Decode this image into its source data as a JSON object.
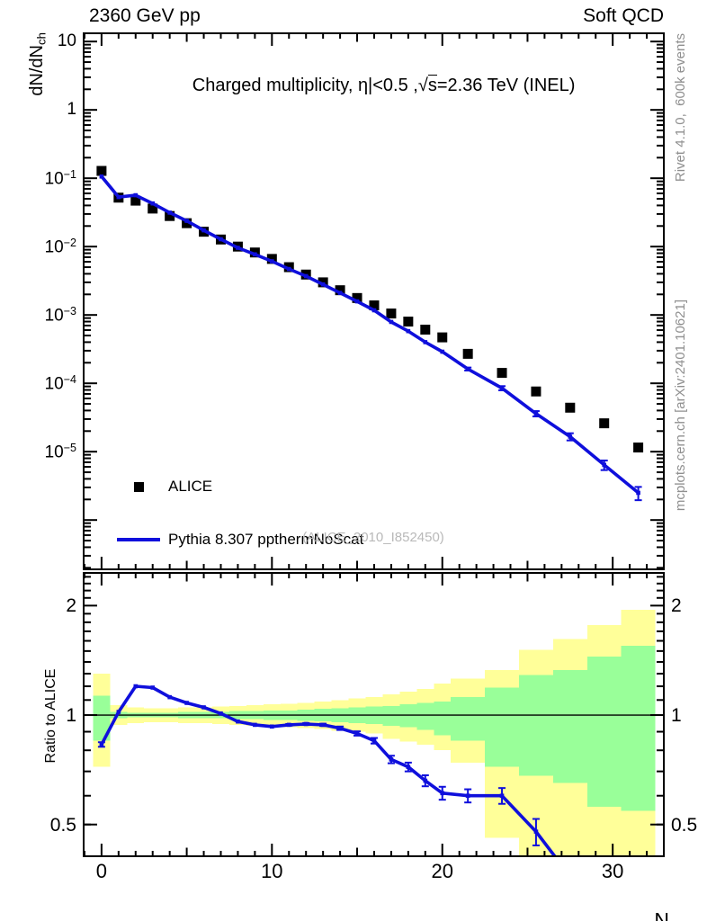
{
  "header": {
    "left": "2360 GeV pp",
    "right": "Soft QCD"
  },
  "side_notes": {
    "top": "Rivet 4.1.0,  600k events",
    "bottom": "mcplots.cern.ch [arXiv:2401.10621]"
  },
  "colors": {
    "mc_line": "#0f0fdc",
    "data_marker": "#000000",
    "band_outer": "#ffff99",
    "band_inner": "#99ff99",
    "side_text": "#8f8f8f",
    "watermark_text": "#b9b9b9"
  },
  "chart_data": [
    {
      "type": "line",
      "panel": "spectrum",
      "title": "Charged multiplicity, η|<0.5 ,√s=2.36 TeV (INEL)",
      "title_parts": {
        "pre": "Charged multiplicity, η|<0.5 ,√",
        "radicand": "s",
        "post": "=2.36 TeV (INEL)"
      },
      "xlabel": "Nch",
      "ylabel": "dN/dNch",
      "ylabel_parts": {
        "main": "dN/dN",
        "sub": "ch"
      },
      "x_range": [
        -1.05,
        33.0
      ],
      "y_range": [
        1.9e-07,
        13.2
      ],
      "y_scale": "log",
      "x_axis_labeled": false,
      "grid": false,
      "y_ticks": [
        {
          "v": 10,
          "base": "10",
          "exp": ""
        },
        {
          "v": 1,
          "base": "1",
          "exp": ""
        },
        {
          "v": 0.1,
          "base": "10",
          "exp": "−1"
        },
        {
          "v": 0.01,
          "base": "10",
          "exp": "−2"
        },
        {
          "v": 0.001,
          "base": "10",
          "exp": "−3"
        },
        {
          "v": 0.0001,
          "base": "10",
          "exp": "−4"
        },
        {
          "v": 1e-05,
          "base": "10",
          "exp": "−5"
        }
      ],
      "watermark": "(ALICE_2010_I852450)",
      "legend": [
        {
          "label": "ALICE",
          "marker": "square",
          "color": "#000000"
        },
        {
          "label": "Pythia 8.307 ppthermNoScat",
          "marker": "line",
          "color": "#0f0fdc"
        }
      ],
      "series": [
        {
          "name": "ALICE",
          "style": "squares",
          "color": "#000000",
          "x": [
            0,
            1,
            2,
            3,
            4,
            5,
            6,
            7,
            8,
            9,
            10,
            11,
            12,
            13,
            14,
            15,
            16,
            17,
            18,
            19,
            20,
            21.5,
            23.5,
            25.5,
            27.5,
            29.5,
            31.5
          ],
          "y": [
            0.128,
            0.052,
            0.047,
            0.036,
            0.028,
            0.022,
            0.0165,
            0.0127,
            0.01,
            0.0082,
            0.0066,
            0.005,
            0.0039,
            0.003,
            0.0023,
            0.00177,
            0.00138,
            0.00105,
            0.0008,
            0.00061,
            0.00047,
            0.00027,
            0.000142,
            7.6e-05,
            4.4e-05,
            2.6e-05,
            1.15e-05
          ]
        },
        {
          "name": "Pythia 8.307 ppthermNoScat",
          "style": "line",
          "color": "#0f0fdc",
          "x": [
            0,
            1,
            2,
            3,
            4,
            5,
            6,
            7,
            8,
            9,
            10,
            11,
            12,
            13,
            14,
            15,
            16,
            17,
            18,
            19,
            20,
            21.5,
            23.5,
            25.5,
            27.5,
            29.5,
            31.5
          ],
          "y": [
            0.106,
            0.053,
            0.0564,
            0.0428,
            0.0314,
            0.0238,
            0.0173,
            0.0128,
            0.0096,
            0.0077,
            0.0061,
            0.0047,
            0.0037,
            0.0028,
            0.0021,
            0.00158,
            0.00117,
            0.00079,
            0.00058,
            0.0004,
            0.00029,
            0.000162,
            8.5e-05,
            3.6e-05,
            1.66e-05,
            6.4e-06,
            2.5e-06
          ],
          "yerr_frac": [
            0,
            0,
            0,
            0,
            0,
            0,
            0,
            0,
            0,
            0,
            0,
            0,
            0,
            0,
            0,
            0,
            0,
            0,
            0,
            0,
            0,
            0.05,
            0.07,
            0.09,
            0.12,
            0.16,
            0.22
          ]
        }
      ]
    },
    {
      "type": "line",
      "panel": "ratio",
      "ylabel": "Ratio to ALICE",
      "xlabel": "Nch",
      "xlabel_parts": {
        "main": "N",
        "sub": "ch"
      },
      "x_range": [
        -1.05,
        33.0
      ],
      "y_range": [
        0.409,
        2.46
      ],
      "y_scale": "log",
      "x_axis_labeled": true,
      "grid": false,
      "ref_line_y": 1,
      "x_ticks_major": [
        {
          "v": 0,
          "label": "0"
        },
        {
          "v": 10,
          "label": "10"
        },
        {
          "v": 20,
          "label": "20"
        },
        {
          "v": 30,
          "label": "30"
        }
      ],
      "y_ticks": [
        {
          "v": 2,
          "label": "2"
        },
        {
          "v": 1,
          "label": "1"
        },
        {
          "v": 0.5,
          "label": "0.5"
        }
      ],
      "y_minor_ticks": [
        0.5,
        0.6,
        0.7,
        0.8,
        0.9,
        1.1,
        1.2,
        1.3,
        1.4,
        1.5,
        1.6,
        1.7,
        1.8,
        1.9,
        2.1,
        2.2,
        2.3,
        2.4
      ],
      "bands": {
        "bin_edges": [
          -0.5,
          0.5,
          1.5,
          2.5,
          3.5,
          4.5,
          5.5,
          6.5,
          7.5,
          8.5,
          9.5,
          10.5,
          11.5,
          12.5,
          13.5,
          14.5,
          15.5,
          16.5,
          17.5,
          18.5,
          19.5,
          20.5,
          22.5,
          24.5,
          26.5,
          28.5,
          30.5,
          32.5
        ],
        "outer_lo": [
          0.72,
          0.94,
          0.95,
          0.955,
          0.955,
          0.95,
          0.95,
          0.945,
          0.94,
          0.935,
          0.93,
          0.925,
          0.92,
          0.915,
          0.905,
          0.9,
          0.89,
          0.86,
          0.845,
          0.83,
          0.8,
          0.74,
          0.46,
          0.35,
          0.35,
          0.35,
          0.35
        ],
        "outer_hi": [
          1.3,
          1.065,
          1.05,
          1.045,
          1.045,
          1.05,
          1.05,
          1.055,
          1.06,
          1.065,
          1.07,
          1.075,
          1.08,
          1.09,
          1.1,
          1.11,
          1.12,
          1.14,
          1.16,
          1.18,
          1.22,
          1.26,
          1.33,
          1.51,
          1.62,
          1.77,
          1.95
        ],
        "inner_lo": [
          0.85,
          0.98,
          0.985,
          0.985,
          0.985,
          0.98,
          0.98,
          0.98,
          0.975,
          0.975,
          0.97,
          0.97,
          0.965,
          0.96,
          0.955,
          0.95,
          0.945,
          0.935,
          0.925,
          0.91,
          0.88,
          0.85,
          0.72,
          0.68,
          0.65,
          0.56,
          0.545
        ],
        "inner_hi": [
          1.13,
          1.02,
          1.015,
          1.015,
          1.015,
          1.02,
          1.02,
          1.02,
          1.025,
          1.025,
          1.03,
          1.03,
          1.035,
          1.04,
          1.045,
          1.05,
          1.055,
          1.06,
          1.07,
          1.08,
          1.09,
          1.12,
          1.19,
          1.29,
          1.33,
          1.45,
          1.55
        ]
      },
      "series": [
        {
          "name": "Pythia 8.307 / ALICE",
          "style": "line",
          "color": "#0f0fdc",
          "x": [
            0,
            1,
            2,
            3,
            4,
            5,
            6,
            7,
            8,
            9,
            10,
            11,
            12,
            13,
            14,
            15,
            16,
            17,
            18,
            19,
            20,
            21.5,
            23.5,
            25.5,
            27.5
          ],
          "y": [
            0.83,
            1.02,
            1.2,
            1.19,
            1.12,
            1.08,
            1.05,
            1.01,
            0.96,
            0.94,
            0.93,
            0.94,
            0.945,
            0.94,
            0.92,
            0.89,
            0.85,
            0.755,
            0.72,
            0.66,
            0.61,
            0.6,
            0.6,
            0.478,
            0.36
          ],
          "yerr": [
            0.012,
            0,
            0,
            0,
            0,
            0,
            0,
            0,
            0,
            0,
            0,
            0.005,
            0.006,
            0.007,
            0.01,
            0.012,
            0.015,
            0.018,
            0.02,
            0.023,
            0.025,
            0.025,
            0.03,
            0.04,
            0
          ]
        }
      ]
    }
  ]
}
